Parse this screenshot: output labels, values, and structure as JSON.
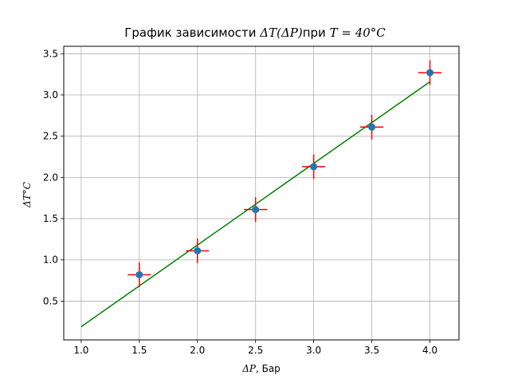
{
  "chart_data": {
    "type": "scatter",
    "title_prefix": "График зависимости ",
    "title_mid": "ΔT(ΔP)",
    "title_sep": "при ",
    "title_cond": "T = 40°C",
    "xlabel_sym": "ΔP",
    "xlabel_unit": ", Бар",
    "ylabel": "ΔT°C",
    "xlim": [
      0.85,
      4.25
    ],
    "ylim": [
      0.03,
      3.59
    ],
    "x_ticks": [
      1.0,
      1.5,
      2.0,
      2.5,
      3.0,
      3.5,
      4.0
    ],
    "y_ticks": [
      0.5,
      1.0,
      1.5,
      2.0,
      2.5,
      3.0,
      3.5
    ],
    "grid": true,
    "points": {
      "x": [
        1.5,
        2.0,
        2.5,
        3.0,
        3.5,
        4.0
      ],
      "y": [
        0.82,
        1.11,
        1.61,
        2.13,
        2.61,
        3.27
      ],
      "xerr": 0.1,
      "yerr": 0.15,
      "marker_color": "#1f77b4",
      "error_color": "#ff0000"
    },
    "fit_line": {
      "x": [
        1.0,
        4.0
      ],
      "y": [
        0.19,
        3.16
      ],
      "color": "#008000"
    }
  }
}
